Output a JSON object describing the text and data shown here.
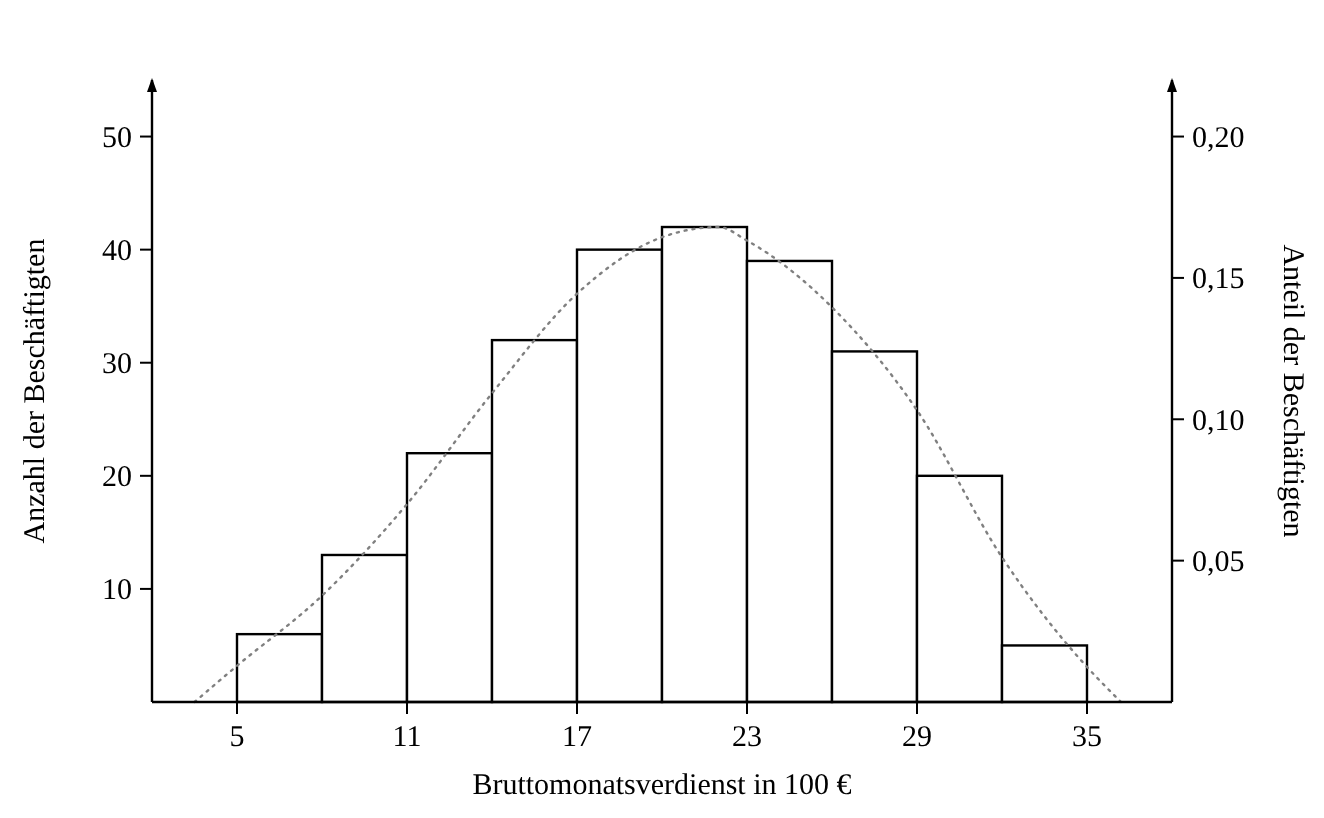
{
  "chart_data": {
    "type": "histogram",
    "xlabel": "Bruttomonatsverdienst in 100 €",
    "ylabel": "Anzahl der Beschäftigten",
    "y2label": "Anteil der Beschäftigten",
    "bins": [
      5,
      8,
      11,
      14,
      17,
      20,
      23,
      26,
      29,
      32,
      35
    ],
    "series": [
      {
        "color": "#000000",
        "values": [
          6,
          13,
          22,
          32,
          40,
          42,
          39,
          31,
          20,
          5
        ]
      },
      {
        "type": "line",
        "color": "#808080",
        "line_style": "dotted",
        "x": [
          3.5,
          5,
          8,
          11,
          14,
          17,
          20,
          22,
          23,
          26,
          29,
          32,
          35,
          36.2
        ],
        "values": [
          0,
          3.2,
          9.4,
          17.5,
          27.3,
          36.1,
          41.1,
          42,
          40.8,
          34.9,
          25.8,
          12.8,
          3.1,
          0
        ]
      }
    ],
    "xlim": [
      2,
      38
    ],
    "xticks": [
      5,
      11,
      17,
      23,
      29,
      35
    ],
    "ylim": [
      0,
      55
    ],
    "yticks": [
      10,
      20,
      30,
      40,
      50
    ],
    "y2lim": [
      0,
      0.22
    ],
    "y2ticks": [
      {
        "value": 0.05,
        "label": "0,05"
      },
      {
        "value": 0.1,
        "label": "0,10"
      },
      {
        "value": 0.15,
        "label": "0,15"
      },
      {
        "value": 0.2,
        "label": "0,20"
      }
    ],
    "grid": false
  }
}
